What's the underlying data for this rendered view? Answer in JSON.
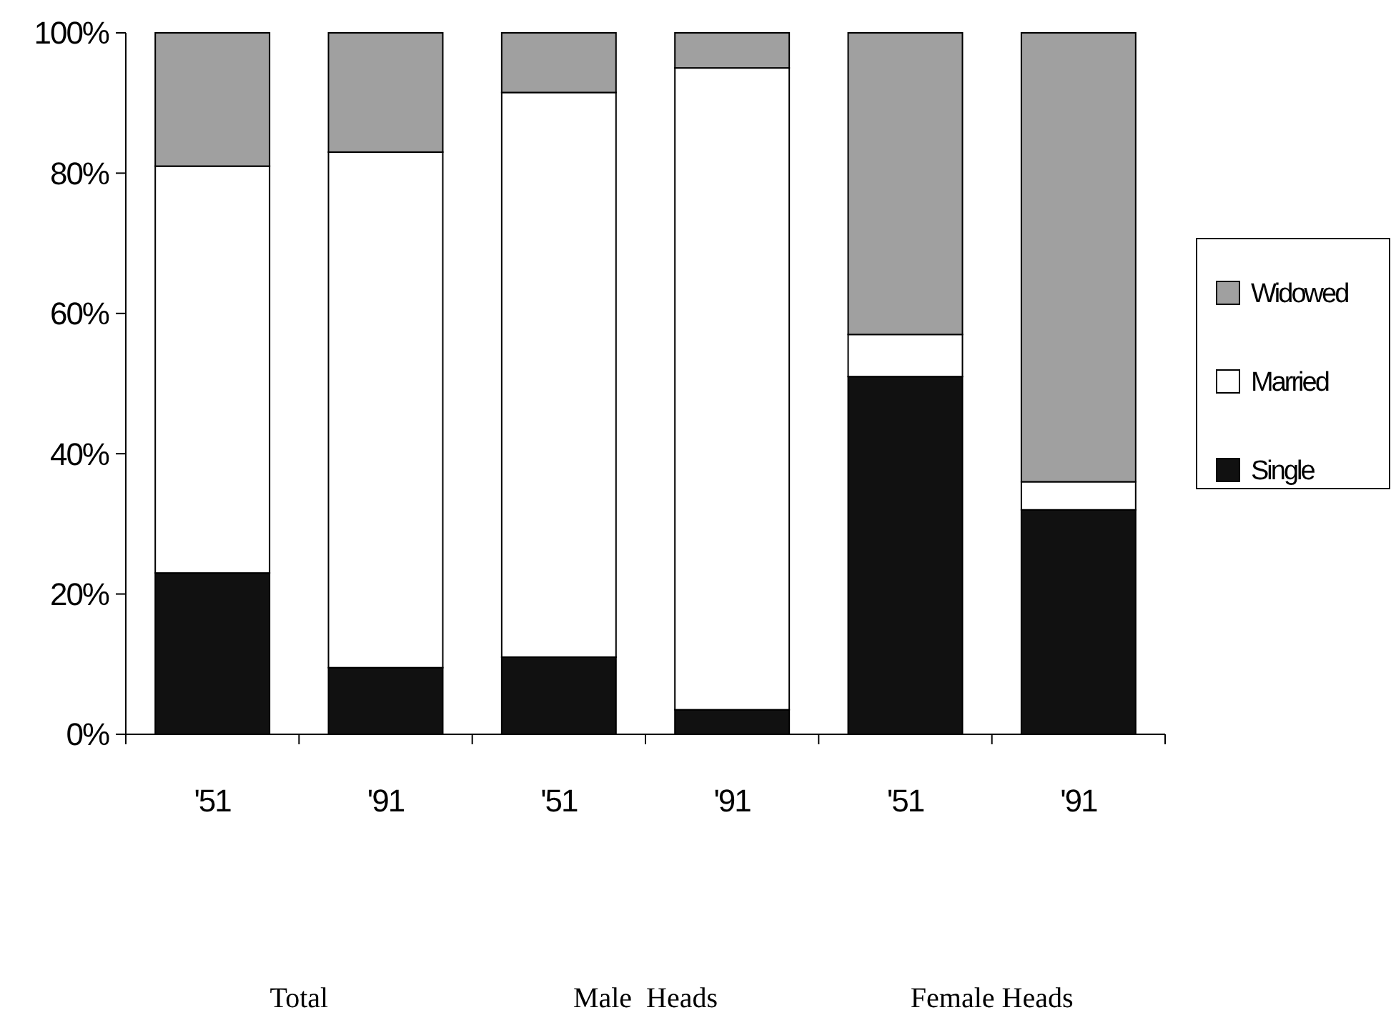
{
  "chart_data": {
    "type": "bar",
    "stacked": true,
    "categories": [
      "'51",
      "'91",
      "'51",
      "'91",
      "'51",
      "'91"
    ],
    "series": [
      {
        "name": "Single",
        "color": "#111111",
        "values": [
          23,
          9.5,
          11,
          3.5,
          51,
          32
        ]
      },
      {
        "name": "Married",
        "color": "#ffffff",
        "values": [
          58,
          73.5,
          80.5,
          91.5,
          6,
          4
        ]
      },
      {
        "name": "Widowed",
        "color": "#a0a0a0",
        "values": [
          19,
          17,
          8.5,
          5,
          43,
          64
        ]
      }
    ],
    "ylim": [
      0,
      100
    ],
    "yticks": [
      {
        "value": 0,
        "label": "0%"
      },
      {
        "value": 20,
        "label": "20%"
      },
      {
        "value": 40,
        "label": "40%"
      },
      {
        "value": 60,
        "label": "60%"
      },
      {
        "value": 80,
        "label": "80%"
      },
      {
        "value": 100,
        "label": "100%"
      }
    ],
    "legend": "right",
    "grid": false,
    "annotations": [
      "Total",
      "Male  Heads",
      "Female Heads"
    ]
  }
}
